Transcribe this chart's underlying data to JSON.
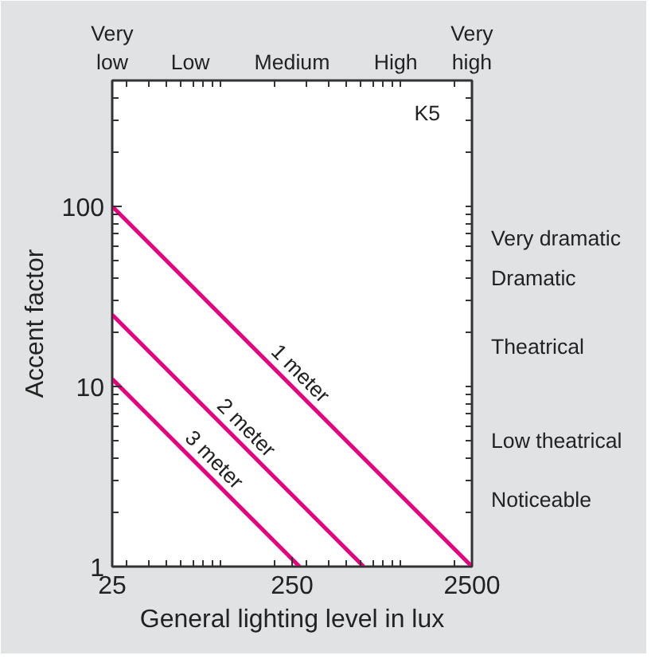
{
  "chart_data": {
    "type": "line",
    "xlabel": "General lighting level in lux",
    "ylabel": "Accent factor",
    "log": "xy",
    "grid": false,
    "legend": false,
    "marker": "none",
    "line_style": "solid",
    "xlim": [
      25,
      2500
    ],
    "ylim": [
      1,
      500
    ],
    "xticks": [
      25,
      250,
      2500
    ],
    "yticks": [
      1,
      10,
      100
    ],
    "annotations": [
      "K5",
      "Very\nlow",
      "Low",
      "Medium",
      "High",
      "Very\nhigh",
      "Very dramatic",
      "Dramatic",
      "Theatrical",
      "Low theatrical",
      "Noticeable"
    ],
    "series": [
      {
        "name": "1 meter",
        "color": "#e6007e",
        "x": [
          25,
          2500
        ],
        "values": [
          100,
          1
        ]
      },
      {
        "name": "2 meter",
        "color": "#e6007e",
        "x": [
          25,
          625
        ],
        "values": [
          25,
          1
        ]
      },
      {
        "name": "3 meter",
        "color": "#e6007e",
        "x": [
          25,
          275
        ],
        "values": [
          11,
          1
        ]
      }
    ]
  }
}
